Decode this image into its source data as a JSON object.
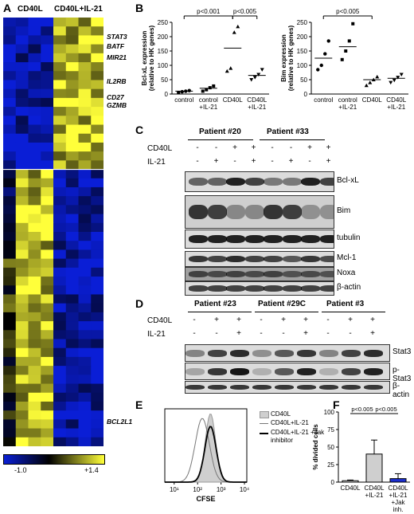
{
  "panelA": {
    "label": "A",
    "group1": "CD40L",
    "group2": "CD40L+IL-21",
    "genes": [
      "STAT3",
      "BATF",
      "MIR21",
      "IL2RB",
      "CD27",
      "GZMB",
      "BCL2L1"
    ],
    "scale_min": "-1.0",
    "scale_max": "+1.4"
  },
  "panelB": {
    "label": "B",
    "chart_data": [
      {
        "type": "scatter",
        "ylabel": "Bcl-xL expression (relative to HK genes)",
        "yticks": [
          "0",
          "50",
          "100",
          "150",
          "200",
          "250"
        ],
        "ylim": [
          0,
          250
        ],
        "categories": [
          "control",
          "control +IL-21",
          "CD40L",
          "CD40L +IL-21"
        ],
        "series": [
          {
            "values": [
              5,
              8,
              10,
              12
            ]
          },
          {
            "values": [
              10,
              15,
              22,
              28
            ]
          },
          {
            "values": [
              80,
              90,
              215,
              235
            ]
          },
          {
            "values": [
              50,
              58,
              68,
              85
            ]
          }
        ],
        "means": [
          10,
          20,
          160,
          65
        ],
        "annotations": [
          "p<0.001",
          "p<0.005"
        ]
      },
      {
        "type": "scatter",
        "ylabel": "Bim expression (relative to HK genes)",
        "yticks": [
          "0",
          "50",
          "100",
          "150",
          "200",
          "250"
        ],
        "ylim": [
          0,
          250
        ],
        "categories": [
          "control",
          "control +IL-21",
          "CD40L",
          "CD40L +IL-21"
        ],
        "series": [
          {
            "values": [
              85,
              100,
              140,
              185
            ]
          },
          {
            "values": [
              120,
              150,
              185,
              245
            ]
          },
          {
            "values": [
              30,
              40,
              50,
              60
            ]
          },
          {
            "values": [
              40,
              48,
              58,
              68
            ]
          }
        ],
        "means": [
          125,
          165,
          50,
          55
        ],
        "annotations": [
          "p<0.005"
        ]
      }
    ]
  },
  "panelC": {
    "label": "C",
    "patients": [
      "Patient #20",
      "Patient #33"
    ],
    "row_cd40l": "CD40L",
    "row_il21": "IL-21",
    "cd40l_signs": [
      "-",
      "-",
      "+",
      "+",
      "-",
      "-",
      "+",
      "+"
    ],
    "il21_signs": [
      "-",
      "+",
      "-",
      "+",
      "-",
      "+",
      "-",
      "+"
    ],
    "blots": [
      "Bcl-xL",
      "Bim",
      "tubulin",
      "Mcl-1",
      "Noxa",
      "β-actin"
    ]
  },
  "panelD": {
    "label": "D",
    "patients": [
      "Patient #23",
      "Patient #29C",
      "Patient #3"
    ],
    "row_cd40l": "CD40L",
    "row_il21": "IL-21",
    "cd40l_signs": [
      "-",
      "+",
      "+",
      "-",
      "+",
      "+",
      "-",
      "+",
      "+"
    ],
    "il21_signs": [
      "-",
      "-",
      "+",
      "-",
      "-",
      "+",
      "-",
      "-",
      "+"
    ],
    "blots": [
      "Stat3",
      "p-Stat3",
      "β-actin"
    ]
  },
  "panelE": {
    "label": "E",
    "xlabel": "CFSE",
    "xticks": [
      "10¹",
      "10²",
      "10³",
      "10⁴"
    ],
    "legend": [
      "CD40L",
      "CD40L+IL-21",
      "CD40L+IL-21 +Jak inhibitor"
    ]
  },
  "panelF": {
    "label": "F",
    "chart_data": {
      "type": "bar",
      "ylabel": "% divided cells",
      "yticks": [
        "0",
        "25",
        "50",
        "75",
        "100"
      ],
      "ylim": [
        0,
        100
      ],
      "categories": [
        "CD40L",
        "CD40L +IL-21",
        "CD40L +IL-21 +Jak inh."
      ],
      "values": [
        2,
        40,
        5
      ],
      "errors": [
        1,
        20,
        7
      ],
      "annotations": [
        "p<0.005",
        "p<0.005"
      ]
    }
  },
  "colors": {
    "heat_low": "#0a1fd6",
    "heat_mid": "#000000",
    "heat_high": "#ffff3a",
    "bar_gray": "#cfcfcf",
    "bar_blue": "#1c2fd0"
  }
}
